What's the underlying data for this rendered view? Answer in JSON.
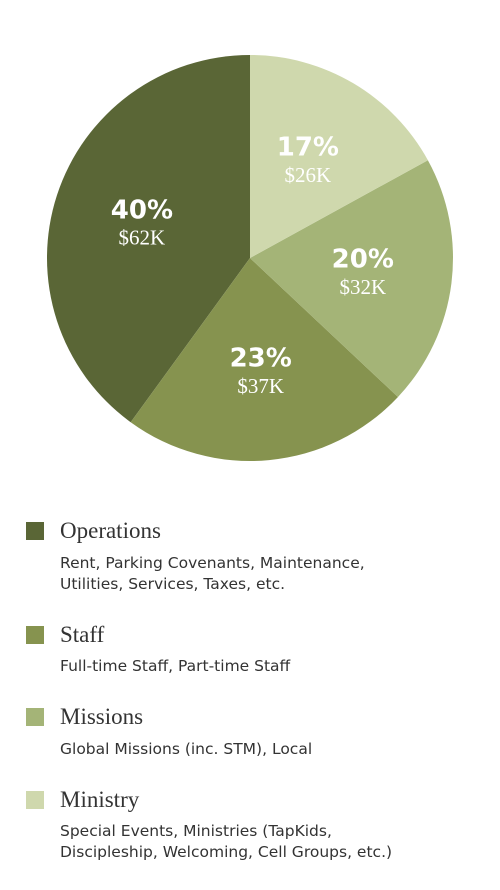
{
  "chart_data": {
    "type": "pie",
    "categories": [
      "Operations",
      "Staff",
      "Missions",
      "Ministry"
    ],
    "descriptions": [
      "Rent, Parking Covenants, Maintenance, Utilities, Services, Taxes, etc.",
      "Full-time Staff, Part-time Staff",
      "Global Missions (inc. STM), Local",
      "Special Events, Ministries (TapKids, Discipleship, Welcoming, Cell Groups, etc.)"
    ],
    "values": [
      40,
      23,
      20,
      17
    ],
    "value_labels": [
      "40%",
      "23%",
      "20%",
      "17%"
    ],
    "amounts": [
      62000,
      37000,
      32000,
      26000
    ],
    "amount_labels": [
      "$62K",
      "$37K",
      "$32K",
      "$26K"
    ],
    "colors": [
      "#5a6636",
      "#86934f",
      "#a4b477",
      "#cfd8ad"
    ]
  }
}
